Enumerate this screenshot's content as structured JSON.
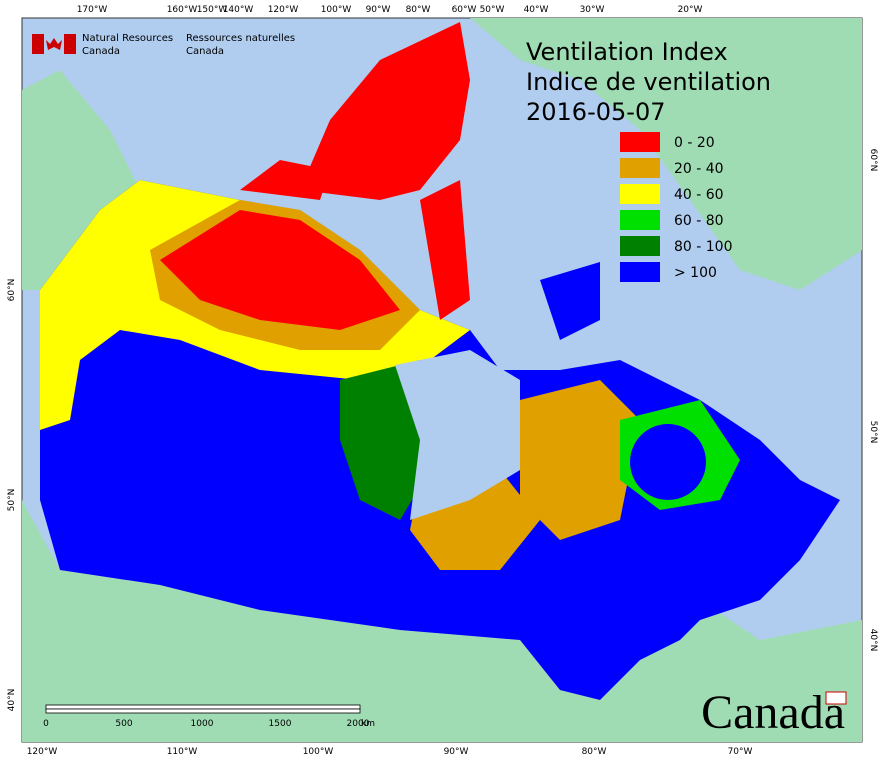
{
  "header": {
    "org_en": [
      "Natural Resources",
      "Canada"
    ],
    "org_fr": [
      "Ressources naturelles",
      "Canada"
    ],
    "title_en": "Ventilation Index",
    "title_fr": "Indice de ventilation",
    "date": "2016-05-07"
  },
  "legend": [
    {
      "label": "0 - 20",
      "color": "#ff0000"
    },
    {
      "label": "20 - 40",
      "color": "#e0a000"
    },
    {
      "label": "40 - 60",
      "color": "#ffff00"
    },
    {
      "label": "60 - 80",
      "color": "#00e000"
    },
    {
      "label": "80 - 100",
      "color": "#008000"
    },
    {
      "label": "> 100",
      "color": "#0000ff"
    }
  ],
  "graticule": {
    "top": [
      "170°W",
      "160°W",
      "150°W",
      "140°W",
      "120°W",
      "100°W",
      "90°W",
      "80°W",
      "60°W",
      "50°W",
      "40°W",
      "30°W",
      "20°W"
    ],
    "bottom": [
      "120°W",
      "110°W",
      "100°W",
      "90°W",
      "80°W",
      "70°W"
    ],
    "left": [
      "60°N",
      "50°N",
      "40°N"
    ],
    "right": [
      "60°N",
      "50°N",
      "40°N"
    ]
  },
  "scale_bar": {
    "labels": [
      "0",
      "500",
      "1000",
      "1500",
      "2000"
    ],
    "unit": "km"
  },
  "wordmark": "Canada"
}
